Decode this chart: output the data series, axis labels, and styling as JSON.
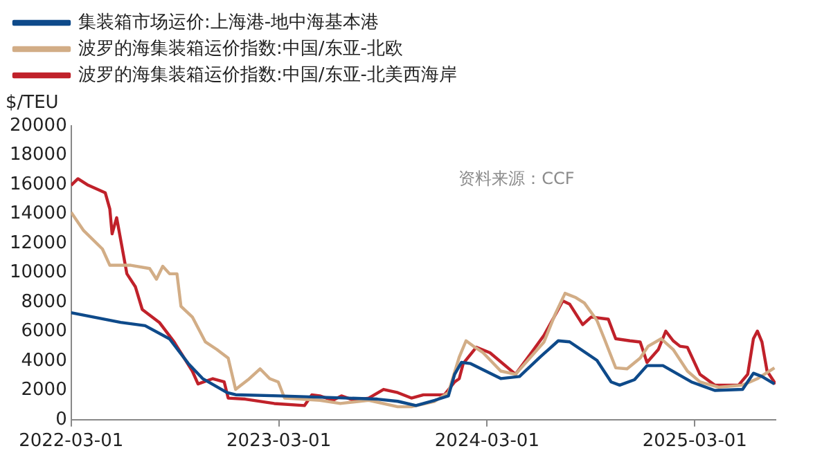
{
  "chart_data": {
    "type": "line",
    "ylabel": "$/TEU",
    "annotations": [
      "资料来源：CCF"
    ],
    "xlim": [
      "2022-03-01",
      "2025-07-21"
    ],
    "xticks": [
      "2022-03-01",
      "2023-03-01",
      "2024-03-01",
      "2025-03-01"
    ],
    "ylim": [
      0,
      20000
    ],
    "yticks": [
      0,
      2000,
      4000,
      6000,
      8000,
      10000,
      12000,
      14000,
      16000,
      18000,
      20000
    ],
    "grid": false,
    "legend": "top",
    "marker": "none",
    "line_style": "solid",
    "series": [
      {
        "name": "集装箱市场运价:上海港-地中海基本港",
        "color": "#0e4a8a",
        "x": [
          "2022-03-01",
          "2022-05-27",
          "2022-07-09",
          "2022-08-21",
          "2022-09-23",
          "2022-10-18",
          "2022-11-30",
          "2022-12-15",
          "2023-03-01",
          "2023-07-01",
          "2023-08-21",
          "2023-09-26",
          "2023-10-28",
          "2023-11-30",
          "2023-12-24",
          "2024-01-04",
          "2024-01-16",
          "2024-02-01",
          "2024-03-25",
          "2024-04-27",
          "2024-06-02",
          "2024-06-17",
          "2024-07-04",
          "2024-07-24",
          "2024-09-10",
          "2024-10-05",
          "2024-10-20",
          "2024-11-15",
          "2024-12-07",
          "2025-01-04",
          "2025-02-23",
          "2025-04-05",
          "2025-05-24",
          "2025-06-12",
          "2025-06-27",
          "2025-07-19"
        ],
        "values": [
          7280,
          6620,
          6400,
          5500,
          3820,
          2800,
          1840,
          1700,
          1620,
          1470,
          1400,
          1250,
          960,
          1320,
          1620,
          3090,
          3900,
          3820,
          2800,
          2940,
          4260,
          4780,
          5370,
          5300,
          4040,
          2570,
          2350,
          2720,
          3680,
          3680,
          2570,
          1990,
          2060,
          3160,
          2940,
          2430
        ]
      },
      {
        "name": "波罗的海集装箱运价指数:中国/东亚-北欧",
        "color": "#d2ad86",
        "x": [
          "2022-03-01",
          "2022-03-23",
          "2022-04-25",
          "2022-05-08",
          "2022-06-14",
          "2022-07-17",
          "2022-07-29",
          "2022-08-09",
          "2022-08-21",
          "2022-09-03",
          "2022-09-10",
          "2022-09-30",
          "2022-10-23",
          "2022-11-12",
          "2022-12-02",
          "2022-12-15",
          "2023-01-06",
          "2023-01-27",
          "2023-02-13",
          "2023-02-28",
          "2023-03-11",
          "2023-05-12",
          "2023-06-17",
          "2023-08-06",
          "2023-09-26",
          "2023-10-20",
          "2023-11-30",
          "2023-12-24",
          "2024-01-12",
          "2024-01-24",
          "2024-02-06",
          "2024-02-23",
          "2024-03-25",
          "2024-04-20",
          "2024-05-15",
          "2024-06-09",
          "2024-06-29",
          "2024-07-16",
          "2024-08-04",
          "2024-08-19",
          "2024-09-10",
          "2024-09-23",
          "2024-10-13",
          "2024-11-02",
          "2024-11-25",
          "2024-12-09",
          "2025-01-01",
          "2025-01-22",
          "2025-02-16",
          "2025-03-10",
          "2025-04-12",
          "2025-05-24",
          "2025-06-19",
          "2025-07-19"
        ],
        "values": [
          14120,
          12870,
          11620,
          10510,
          10510,
          10290,
          9560,
          10440,
          9930,
          9930,
          7720,
          6990,
          5290,
          4780,
          4190,
          2060,
          2720,
          3460,
          2790,
          2570,
          1470,
          1320,
          1100,
          1320,
          880,
          880,
          1250,
          1840,
          4260,
          5370,
          5000,
          4560,
          3310,
          3090,
          4190,
          5290,
          7210,
          8600,
          8310,
          7940,
          6760,
          5510,
          3530,
          3460,
          4190,
          5000,
          5510,
          4780,
          3310,
          2570,
          2210,
          2350,
          2790,
          3530
        ]
      },
      {
        "name": "波罗的海集装箱运价指数:中国/东亚-北美西海岸",
        "color": "#c0212a",
        "x": [
          "2022-03-01",
          "2022-03-13",
          "2022-03-31",
          "2022-04-30",
          "2022-05-08",
          "2022-05-12",
          "2022-05-20",
          "2022-06-07",
          "2022-06-22",
          "2022-07-04",
          "2022-08-03",
          "2022-08-29",
          "2022-09-30",
          "2022-10-10",
          "2022-11-05",
          "2022-11-25",
          "2022-12-02",
          "2023-01-01",
          "2023-02-21",
          "2023-04-15",
          "2023-04-28",
          "2023-05-12",
          "2023-06-04",
          "2023-06-19",
          "2023-07-11",
          "2023-08-06",
          "2023-09-01",
          "2023-09-26",
          "2023-10-20",
          "2023-11-10",
          "2023-12-17",
          "2024-01-04",
          "2024-01-12",
          "2024-01-19",
          "2024-02-11",
          "2024-03-06",
          "2024-04-20",
          "2024-05-22",
          "2024-06-09",
          "2024-07-04",
          "2024-07-12",
          "2024-07-24",
          "2024-08-16",
          "2024-08-31",
          "2024-09-30",
          "2024-10-13",
          "2024-11-07",
          "2024-11-25",
          "2024-12-07",
          "2024-12-27",
          "2025-01-09",
          "2025-01-22",
          "2025-02-03",
          "2025-02-16",
          "2025-03-10",
          "2025-04-05",
          "2025-05-17",
          "2025-06-02",
          "2025-06-12",
          "2025-06-19",
          "2025-06-27",
          "2025-07-06",
          "2025-07-21"
        ],
        "values": [
          15960,
          16400,
          15960,
          15440,
          14340,
          12650,
          13750,
          9930,
          9040,
          7500,
          6620,
          5290,
          3310,
          2430,
          2790,
          2570,
          1470,
          1400,
          1100,
          960,
          1690,
          1620,
          1320,
          1620,
          1320,
          1470,
          2060,
          1840,
          1470,
          1690,
          1690,
          2570,
          2790,
          3820,
          4930,
          4560,
          3090,
          4780,
          5740,
          7500,
          8090,
          7870,
          6470,
          6990,
          6840,
          5510,
          5370,
          5290,
          3900,
          4780,
          6030,
          5370,
          5000,
          4930,
          3090,
          2350,
          2350,
          3090,
          5510,
          6030,
          5290,
          3310,
          2430
        ]
      }
    ]
  }
}
